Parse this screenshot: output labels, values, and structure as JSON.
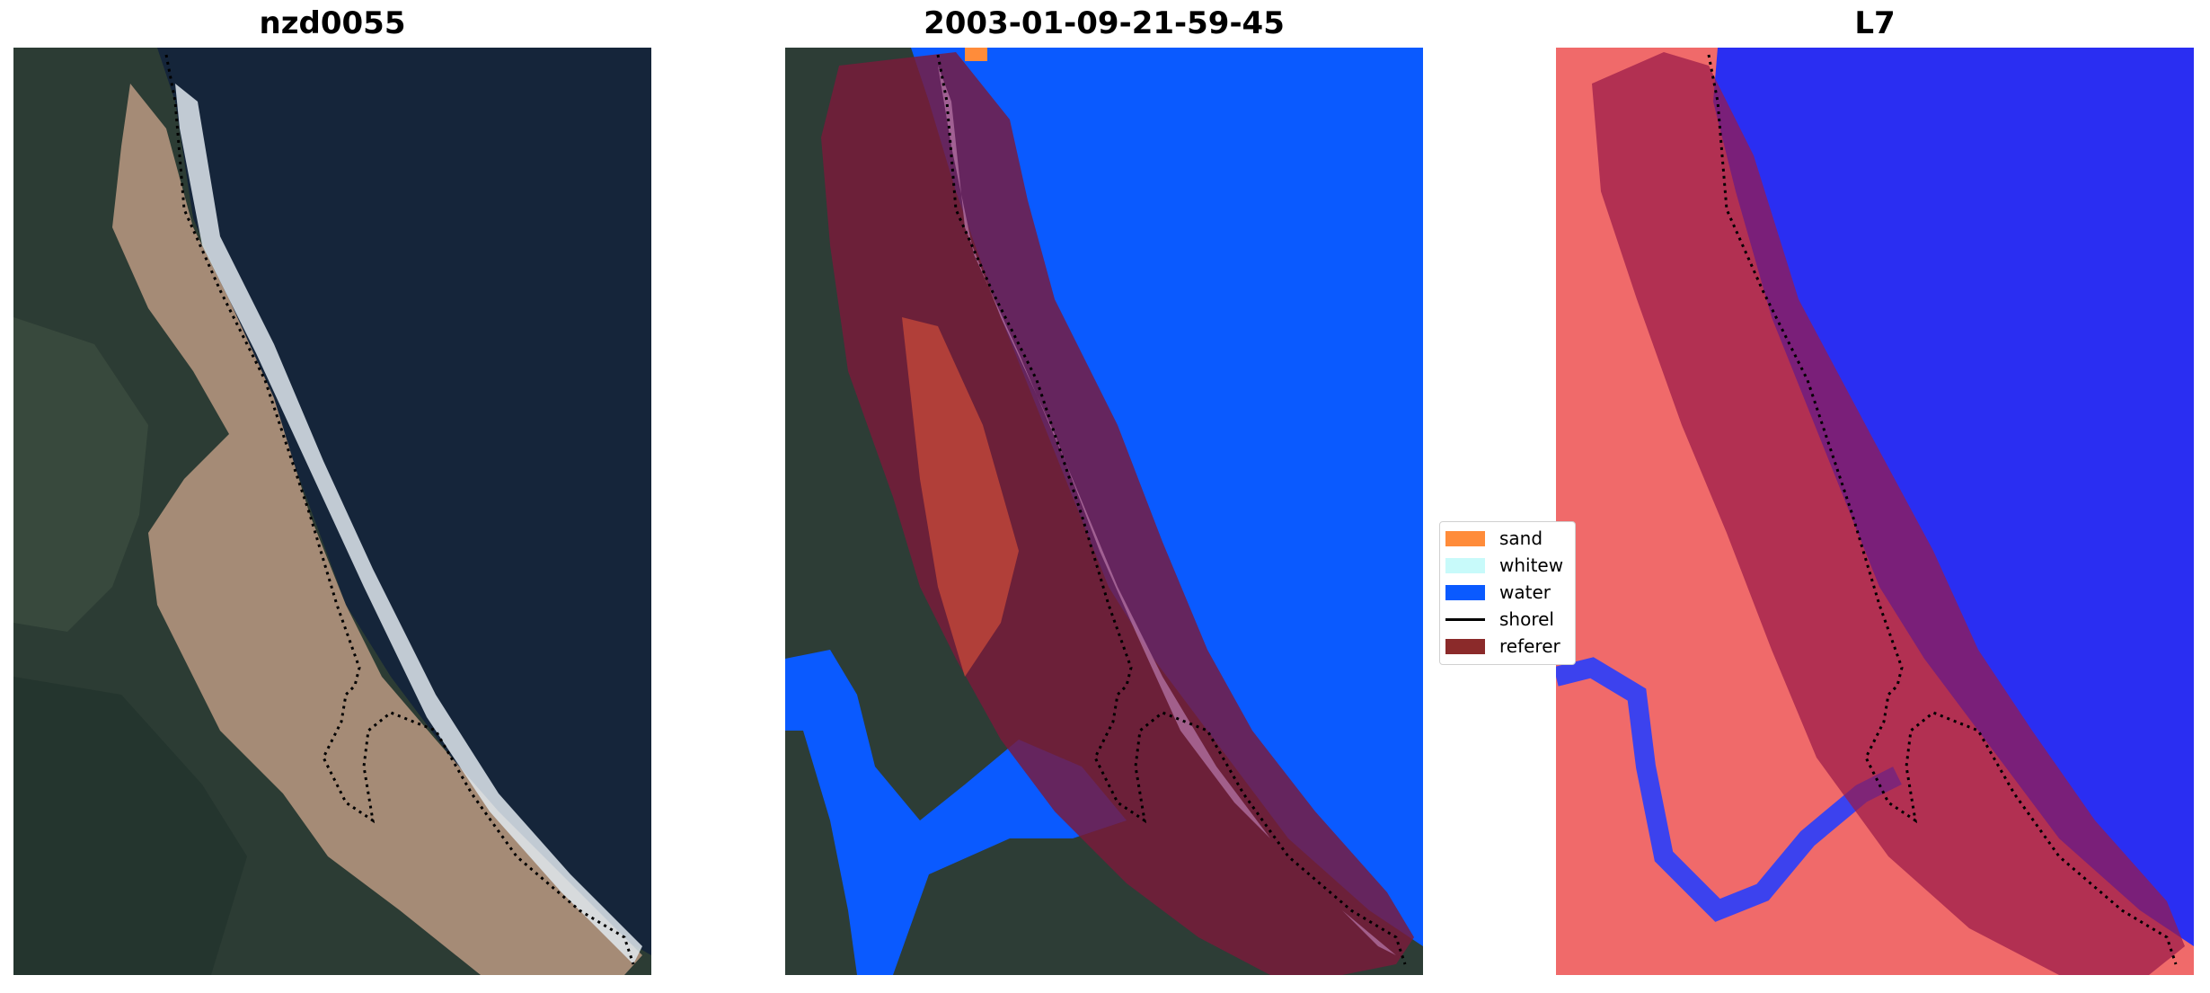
{
  "panels": [
    {
      "title": "nzd0055"
    },
    {
      "title": "2003-01-09-21-59-45"
    },
    {
      "title": "L7"
    }
  ],
  "legend": [
    {
      "label": "sand",
      "color": "#ff8c3a"
    },
    {
      "label": "whitew",
      "color": "#c8fafa"
    },
    {
      "label": "water",
      "color": "#0a5aff"
    },
    {
      "label": "shorel",
      "color": "#000000"
    },
    {
      "label": "referer",
      "color": "#8b2a2a"
    }
  ],
  "colors": {
    "ocean_dark": "#16263a",
    "land_dark": "#2a3a33",
    "sand_beige": "#a98f7a",
    "surf_white": "#e6eef3",
    "water_class": "#0a5aff",
    "reference_buffer": "#8b1a2a",
    "index_red": "#f25a5a",
    "index_blue": "#2a2ef2"
  }
}
